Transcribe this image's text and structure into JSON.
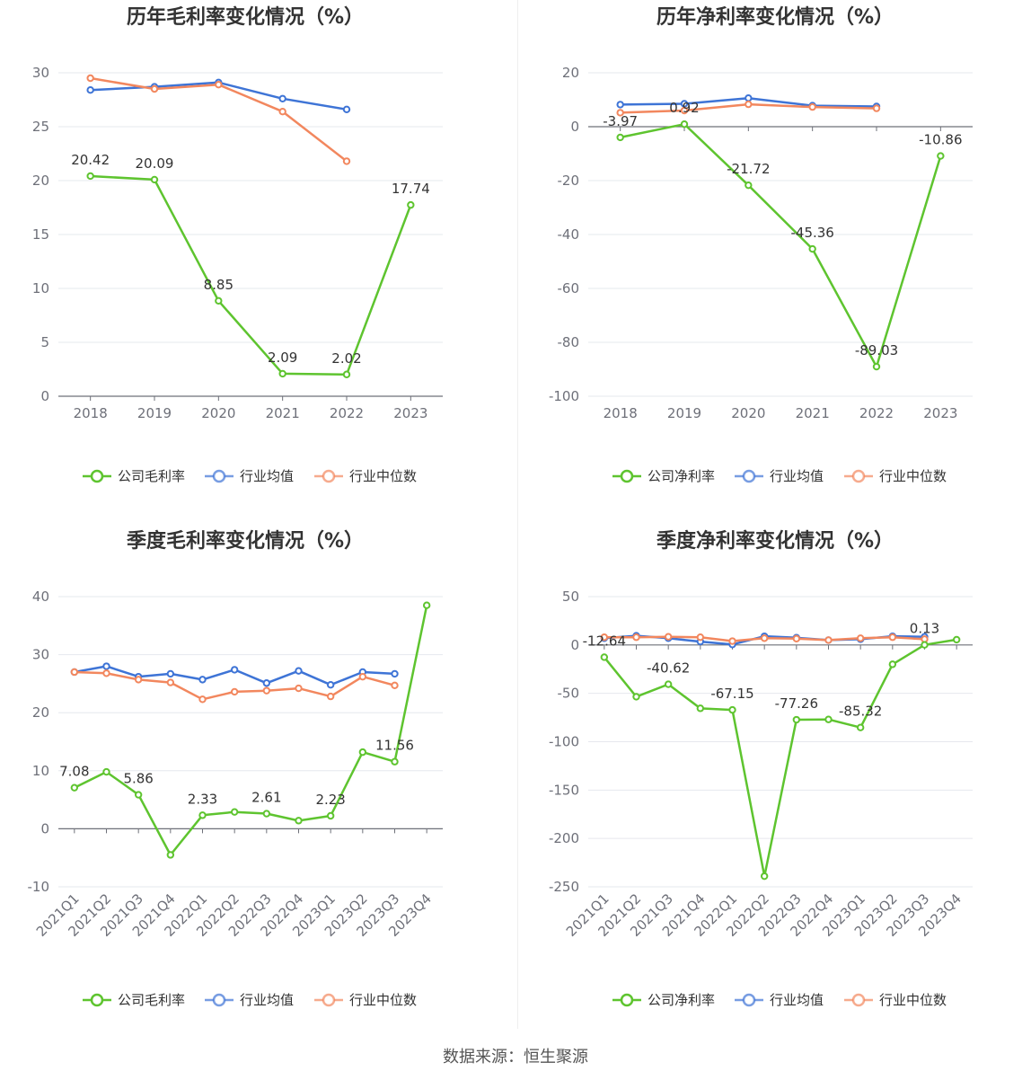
{
  "source_text": "数据来源：恒生聚源",
  "colors": {
    "company": "#5ec42f",
    "average": "#3e74d6",
    "median": "#f2875e"
  },
  "chart_data": [
    {
      "type": "line",
      "title": "历年毛利率变化情况（%）",
      "categories": [
        "2018",
        "2019",
        "2020",
        "2021",
        "2022",
        "2023"
      ],
      "ylim": [
        0,
        30
      ],
      "yticks": [
        0,
        5,
        10,
        15,
        20,
        25,
        30
      ],
      "rotate_x_labels": false,
      "legend_position": "bottom",
      "series": [
        {
          "name": "公司毛利率",
          "values": [
            20.42,
            20.09,
            8.85,
            2.09,
            2.02,
            17.74
          ],
          "labels": [
            "20.42",
            "20.09",
            "8.85",
            "2.09",
            "2.02",
            "17.74"
          ]
        },
        {
          "name": "行业均值",
          "values": [
            28.4,
            28.7,
            29.1,
            27.6,
            26.6,
            null
          ]
        },
        {
          "name": "行业中位数",
          "values": [
            29.5,
            28.5,
            28.9,
            26.4,
            21.8,
            null
          ]
        }
      ]
    },
    {
      "type": "line",
      "title": "历年净利率变化情况（%）",
      "categories": [
        "2018",
        "2019",
        "2020",
        "2021",
        "2022",
        "2023"
      ],
      "ylim": [
        -100,
        20
      ],
      "yticks": [
        -100,
        -80,
        -60,
        -40,
        -20,
        0,
        20
      ],
      "rotate_x_labels": false,
      "legend_position": "bottom",
      "series": [
        {
          "name": "公司净利率",
          "values": [
            -3.97,
            0.92,
            -21.72,
            -45.36,
            -89.03,
            -10.86
          ],
          "labels": [
            "-3.97",
            "0.92",
            "-21.72",
            "-45.36",
            "-89.03",
            "-10.86"
          ]
        },
        {
          "name": "行业均值",
          "values": [
            8.2,
            8.5,
            10.6,
            7.8,
            7.5,
            null
          ]
        },
        {
          "name": "行业中位数",
          "values": [
            5.2,
            6.0,
            8.3,
            7.3,
            6.8,
            null
          ]
        }
      ]
    },
    {
      "type": "line",
      "title": "季度毛利率变化情况（%）",
      "categories": [
        "2021Q1",
        "2021Q2",
        "2021Q3",
        "2021Q4",
        "2022Q1",
        "2022Q2",
        "2022Q3",
        "2022Q4",
        "2023Q1",
        "2023Q2",
        "2023Q3",
        "2023Q4"
      ],
      "ylim": [
        -10,
        40
      ],
      "yticks": [
        -10,
        0,
        10,
        20,
        30,
        40
      ],
      "rotate_x_labels": true,
      "legend_position": "bottom",
      "series": [
        {
          "name": "公司毛利率",
          "values": [
            7.08,
            9.8,
            5.86,
            -4.5,
            2.33,
            2.9,
            2.61,
            1.4,
            2.23,
            13.2,
            11.56,
            38.5
          ],
          "labels": [
            "7.08",
            null,
            "5.86",
            null,
            "2.33",
            null,
            "2.61",
            null,
            "2.23",
            null,
            "11.56",
            null
          ]
        },
        {
          "name": "行业均值",
          "values": [
            27.0,
            28.0,
            26.2,
            26.7,
            25.7,
            27.4,
            25.1,
            27.2,
            24.8,
            27.0,
            26.7,
            null
          ]
        },
        {
          "name": "行业中位数",
          "values": [
            27.0,
            26.8,
            25.7,
            25.2,
            22.3,
            23.6,
            23.8,
            24.2,
            22.8,
            26.2,
            24.7,
            null
          ]
        }
      ]
    },
    {
      "type": "line",
      "title": "季度净利率变化情况（%）",
      "categories": [
        "2021Q1",
        "2021Q2",
        "2021Q3",
        "2021Q4",
        "2022Q1",
        "2022Q2",
        "2022Q3",
        "2022Q4",
        "2023Q1",
        "2023Q2",
        "2023Q3",
        "2023Q4"
      ],
      "ylim": [
        -250,
        50
      ],
      "yticks": [
        -250,
        -200,
        -150,
        -100,
        -50,
        0,
        50
      ],
      "rotate_x_labels": true,
      "legend_position": "bottom",
      "series": [
        {
          "name": "公司净利率",
          "values": [
            -12.64,
            -53.5,
            -40.62,
            -65.5,
            -67.15,
            -239.0,
            -77.26,
            -77.0,
            -85.32,
            -20.0,
            0.13,
            5.5
          ],
          "labels": [
            "-12.64",
            null,
            "-40.62",
            null,
            "-67.15",
            null,
            "-77.26",
            null,
            "-85.32",
            null,
            "0.13",
            null
          ]
        },
        {
          "name": "行业均值",
          "values": [
            7.0,
            9.5,
            7.0,
            3.5,
            0.5,
            9.0,
            7.5,
            5.0,
            6.0,
            9.0,
            8.5,
            null
          ]
        },
        {
          "name": "行业中位数",
          "values": [
            8.0,
            8.0,
            8.5,
            8.0,
            4.0,
            7.0,
            6.5,
            5.0,
            7.0,
            8.0,
            6.0,
            null
          ]
        }
      ]
    }
  ]
}
